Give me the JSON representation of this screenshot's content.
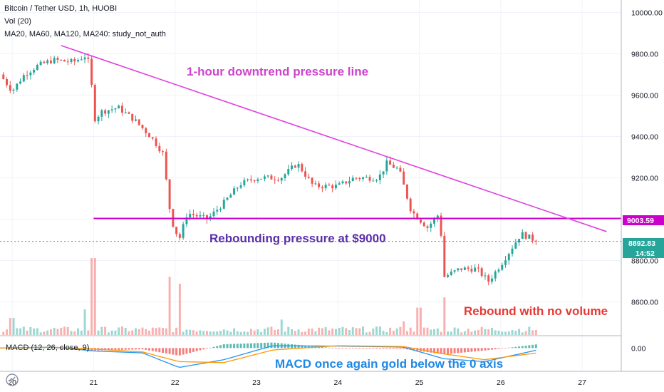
{
  "legend": {
    "symbol": "Bitcoin / Tether USD, 1h, HUOBI",
    "volume": "Vol (20)",
    "ma": "MA20, MA60, MA120, MA240: study_not_auth",
    "macd": "MACD (12, 26, close, 9)"
  },
  "colors": {
    "up": "#26a69a",
    "down": "#ef5350",
    "pressure_line": "#e040e0",
    "level_line": "#cc00cc",
    "price_tag": "#26a69a",
    "macd_line": "#2196f3",
    "signal_line": "#ff9800",
    "annotation_purple": "#cc44cc",
    "annotation_indigo": "#5c2fa8",
    "annotation_red": "#e53935",
    "annotation_blue": "#1e88e5"
  },
  "annotations": {
    "downtrend": "1-hour downtrend pressure line",
    "rebound_pressure": "Rebounding pressure at $9000",
    "no_volume": "Rebound with no volume",
    "macd_note": "MACD once again gold below the 0 axis"
  },
  "price_tags": {
    "level": "9003.59",
    "last": "8892.83",
    "countdown": "14:52"
  },
  "chart_data": {
    "type": "candlestick",
    "title": "Bitcoin / Tether USD, 1h, HUOBI",
    "price_axis": {
      "ylim": [
        8440,
        10060
      ],
      "ticks": [
        "10000.00",
        "9800.00",
        "9600.00",
        "9400.00",
        "9200.00",
        "9000.00",
        "8800.00",
        "8600.00"
      ],
      "tick_values": [
        10000,
        9800,
        9600,
        9400,
        9200,
        9000,
        8800,
        8600
      ]
    },
    "time_axis": {
      "labels": [
        "20",
        "21",
        "22",
        "23",
        "24",
        "25",
        "26",
        "27"
      ],
      "label_days": [
        20,
        21,
        22,
        23,
        24,
        25,
        26,
        27
      ],
      "xlim": [
        19.85,
        27.48
      ]
    },
    "macd_axis": {
      "tick": "0.00",
      "tick_value": 0,
      "ylim": [
        -120,
        60
      ]
    },
    "levels": [
      {
        "name": "Rebounding pressure at $9000",
        "price": 9003.59
      }
    ],
    "trendlines": [
      {
        "name": "1-hour downtrend pressure line",
        "from": [
          20.6,
          9840
        ],
        "to": [
          27.3,
          8940
        ]
      }
    ],
    "ohlc_anchors": [
      {
        "t": 19.85,
        "c": 9700
      },
      {
        "t": 20.0,
        "c": 9620
      },
      {
        "t": 20.15,
        "c": 9700
      },
      {
        "t": 20.3,
        "c": 9740
      },
      {
        "t": 20.5,
        "c": 9770
      },
      {
        "t": 20.75,
        "c": 9760
      },
      {
        "t": 20.9,
        "c": 9790
      },
      {
        "t": 20.96,
        "c": 9740
      },
      {
        "t": 21.0,
        "c": 9480
      },
      {
        "t": 21.1,
        "c": 9520
      },
      {
        "t": 21.3,
        "c": 9540
      },
      {
        "t": 21.5,
        "c": 9480
      },
      {
        "t": 21.7,
        "c": 9400
      },
      {
        "t": 21.85,
        "c": 9320
      },
      {
        "t": 21.95,
        "c": 9000
      },
      {
        "t": 22.05,
        "c": 8900
      },
      {
        "t": 22.15,
        "c": 9030
      },
      {
        "t": 22.4,
        "c": 9000
      },
      {
        "t": 22.6,
        "c": 9080
      },
      {
        "t": 22.8,
        "c": 9170
      },
      {
        "t": 23.0,
        "c": 9200
      },
      {
        "t": 23.3,
        "c": 9200
      },
      {
        "t": 23.5,
        "c": 9270
      },
      {
        "t": 23.7,
        "c": 9160
      },
      {
        "t": 24.0,
        "c": 9160
      },
      {
        "t": 24.2,
        "c": 9200
      },
      {
        "t": 24.5,
        "c": 9200
      },
      {
        "t": 24.6,
        "c": 9270
      },
      {
        "t": 24.75,
        "c": 9240
      },
      {
        "t": 24.9,
        "c": 9040
      },
      {
        "t": 25.0,
        "c": 9000
      },
      {
        "t": 25.1,
        "c": 8960
      },
      {
        "t": 25.25,
        "c": 9030
      },
      {
        "t": 25.3,
        "c": 8720
      },
      {
        "t": 25.5,
        "c": 8760
      },
      {
        "t": 25.7,
        "c": 8760
      },
      {
        "t": 25.85,
        "c": 8700
      },
      {
        "t": 26.0,
        "c": 8780
      },
      {
        "t": 26.15,
        "c": 8870
      },
      {
        "t": 26.25,
        "c": 8930
      },
      {
        "t": 26.45,
        "c": 8892.83
      }
    ],
    "volume_spikes": [
      {
        "t": 20.0,
        "v": 1.0
      },
      {
        "t": 20.9,
        "v": 1.5
      },
      {
        "t": 21.0,
        "v": 4.5
      },
      {
        "t": 21.95,
        "v": 3.4
      },
      {
        "t": 22.05,
        "v": 3.0
      },
      {
        "t": 23.3,
        "v": 0.9
      },
      {
        "t": 24.8,
        "v": 0.8
      },
      {
        "t": 25.0,
        "v": 1.6
      },
      {
        "t": 25.3,
        "v": 2.2
      }
    ],
    "macd_anchors": [
      {
        "t": 19.85,
        "m": 0,
        "s": 0
      },
      {
        "t": 20.5,
        "m": 5,
        "s": 4
      },
      {
        "t": 21.0,
        "m": -15,
        "s": -5
      },
      {
        "t": 21.6,
        "m": -25,
        "s": -20
      },
      {
        "t": 22.05,
        "m": -100,
        "s": -70
      },
      {
        "t": 22.6,
        "m": -60,
        "s": -75
      },
      {
        "t": 23.2,
        "m": 12,
        "s": -10
      },
      {
        "t": 24.0,
        "m": 10,
        "s": 12
      },
      {
        "t": 24.8,
        "m": 5,
        "s": 8
      },
      {
        "t": 25.3,
        "m": -55,
        "s": -30
      },
      {
        "t": 25.8,
        "m": -70,
        "s": -60
      },
      {
        "t": 26.45,
        "m": -10,
        "s": -25
      }
    ]
  }
}
